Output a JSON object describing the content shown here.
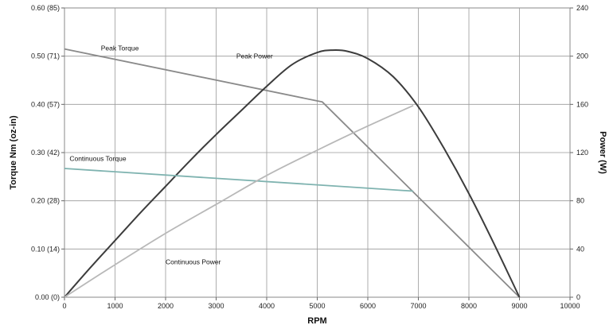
{
  "chart_data": {
    "type": "line",
    "title": "",
    "xlabel": "RPM",
    "ylabel_left": "Torque Nm (oz-in)",
    "ylabel_right": "Power (W)",
    "xlim": [
      0,
      10000
    ],
    "ylim_left": [
      0,
      0.6
    ],
    "ylim_right": [
      0,
      240
    ],
    "x_ticks": [
      "0",
      "1000",
      "2000",
      "3000",
      "4000",
      "5000",
      "6000",
      "7000",
      "8000",
      "9000",
      "10000"
    ],
    "y_left_ticks": [
      "0.00 (0)",
      "0.10 (14)",
      "0.20 (28)",
      "0.30 (42)",
      "0.40 (57)",
      "0.50 (71)",
      "0.60 (85)"
    ],
    "y_right_ticks": [
      "0",
      "40",
      "80",
      "120",
      "160",
      "200",
      "240"
    ],
    "grid": true,
    "series": [
      {
        "name": "Peak Torque",
        "axis": "left",
        "color": "#8a8a8a",
        "points": [
          [
            0,
            0.515
          ],
          [
            5100,
            0.405
          ],
          [
            9000,
            0.0
          ]
        ]
      },
      {
        "name": "Peak Power",
        "axis": "right",
        "color": "#3c3c3c",
        "points": [
          [
            0,
            0
          ],
          [
            500,
            24
          ],
          [
            1000,
            47
          ],
          [
            1500,
            70
          ],
          [
            2000,
            92
          ],
          [
            2500,
            114
          ],
          [
            3000,
            135
          ],
          [
            3500,
            155
          ],
          [
            4000,
            175
          ],
          [
            4500,
            193
          ],
          [
            5000,
            203
          ],
          [
            5300,
            205
          ],
          [
            5600,
            204
          ],
          [
            6000,
            198
          ],
          [
            6500,
            183
          ],
          [
            7000,
            158
          ],
          [
            7500,
            124
          ],
          [
            8000,
            86
          ],
          [
            8500,
            44
          ],
          [
            9000,
            0
          ]
        ]
      },
      {
        "name": "Continuous Torque",
        "axis": "left",
        "color": "#7fb3b0",
        "points": [
          [
            0,
            0.267
          ],
          [
            6900,
            0.22
          ]
        ]
      },
      {
        "name": "Continuous Power",
        "axis": "right",
        "color": "#b8b8b8",
        "points": [
          [
            0,
            0
          ],
          [
            1000,
            27
          ],
          [
            2000,
            53
          ],
          [
            3000,
            77
          ],
          [
            4000,
            101
          ],
          [
            5000,
            122
          ],
          [
            6000,
            142
          ],
          [
            6900,
            159
          ]
        ]
      }
    ],
    "annotations": [
      {
        "text": "Peak Torque",
        "x": 720,
        "y": 0.512,
        "axis": "left"
      },
      {
        "text": "Peak Power",
        "x": 3400,
        "y": 198,
        "axis": "right"
      },
      {
        "text": "Continuous Torque",
        "x": 100,
        "y": 0.283,
        "axis": "left"
      },
      {
        "text": "Continuous Power",
        "x": 2000,
        "y": 0.068,
        "axis": "left"
      }
    ]
  }
}
